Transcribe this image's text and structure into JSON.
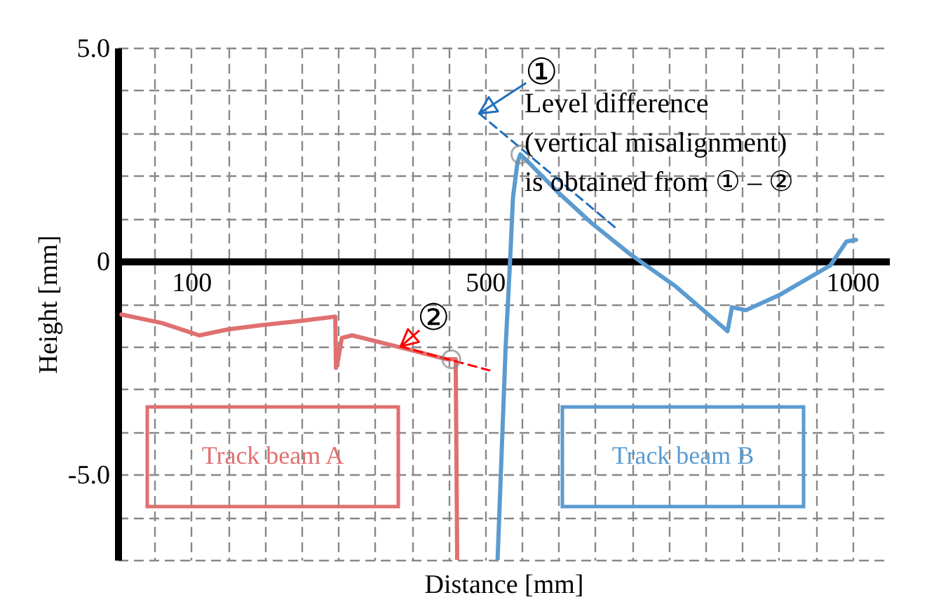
{
  "chart_data": {
    "type": "line",
    "xlabel": "Distance [mm]",
    "ylabel": "Height [mm]",
    "xlim": [
      0,
      1050
    ],
    "ylim": [
      -7,
      5
    ],
    "xticks": [
      {
        "value": 0,
        "label": null
      },
      {
        "value": 50,
        "label": null
      },
      100,
      {
        "value": 150,
        "label": null
      },
      {
        "value": 200,
        "label": null
      },
      {
        "value": 250,
        "label": null
      },
      {
        "value": 300,
        "label": null
      },
      {
        "value": 350,
        "label": null
      },
      {
        "value": 400,
        "label": null
      },
      {
        "value": 450,
        "label": null
      },
      500,
      {
        "value": 550,
        "label": null
      },
      {
        "value": 600,
        "label": null
      },
      {
        "value": 650,
        "label": null
      },
      {
        "value": 700,
        "label": null
      },
      {
        "value": 750,
        "label": null
      },
      {
        "value": 800,
        "label": null
      },
      {
        "value": 850,
        "label": null
      },
      {
        "value": 900,
        "label": null
      },
      {
        "value": 950,
        "label": null
      },
      1000
    ],
    "yticks": [
      {
        "value": -7,
        "label": null
      },
      {
        "value": -6,
        "label": null
      },
      {
        "value": -5,
        "label": "-5.0"
      },
      {
        "value": -4,
        "label": null
      },
      {
        "value": -3,
        "label": null
      },
      {
        "value": -2,
        "label": null
      },
      {
        "value": -1,
        "label": null
      },
      0,
      {
        "value": 1,
        "label": null
      },
      {
        "value": 2,
        "label": null
      },
      {
        "value": 3,
        "label": null
      },
      {
        "value": 4,
        "label": null
      },
      {
        "value": 5,
        "label": "5.0"
      }
    ],
    "grid": true,
    "series": [
      {
        "name": "Track beam A",
        "color": "#e07070",
        "x": [
          5,
          60,
          111,
          150,
          195,
          250,
          296,
          297,
          300,
          305,
          319,
          380,
          448,
          460,
          462
        ],
        "values": [
          -1.25,
          -1.45,
          -1.74,
          -1.6,
          -1.5,
          -1.4,
          -1.3,
          -2.5,
          -2.3,
          -1.8,
          -1.74,
          -2.0,
          -2.3,
          -2.3,
          -7
        ]
      },
      {
        "name": "Track beam B",
        "color": "#5b9bd0",
        "x": [
          517,
          528,
          534,
          538,
          544,
          548,
          560,
          600,
          645,
          697,
          760,
          830,
          836,
          855,
          900,
          970,
          992,
          1005
        ],
        "values": [
          -7,
          -2,
          0,
          1.5,
          2.3,
          2.5,
          2.3,
          1.6,
          0.89,
          0.17,
          -0.6,
          -1.64,
          -1.08,
          -1.15,
          -0.8,
          -0.1,
          0.46,
          0.5
        ]
      },
      {
        "type": "line",
        "line_style": "dashed",
        "color": "#ff0000",
        "x": [
          385,
          506
        ],
        "values": [
          -2.0,
          -2.56
        ]
      },
      {
        "type": "line",
        "line_style": "dashed",
        "color": "#1f6fc0",
        "x": [
          492,
          677
        ],
        "values": [
          3.46,
          0.79
        ]
      },
      {
        "type": "scatter",
        "color": "#888888",
        "x": [
          548,
          454
        ],
        "values": [
          2.5,
          -2.3
        ]
      }
    ],
    "annotations": [
      "①",
      "②",
      "Level difference\n(vertical misalignment)\nis obtained from ① – ②"
    ]
  }
}
